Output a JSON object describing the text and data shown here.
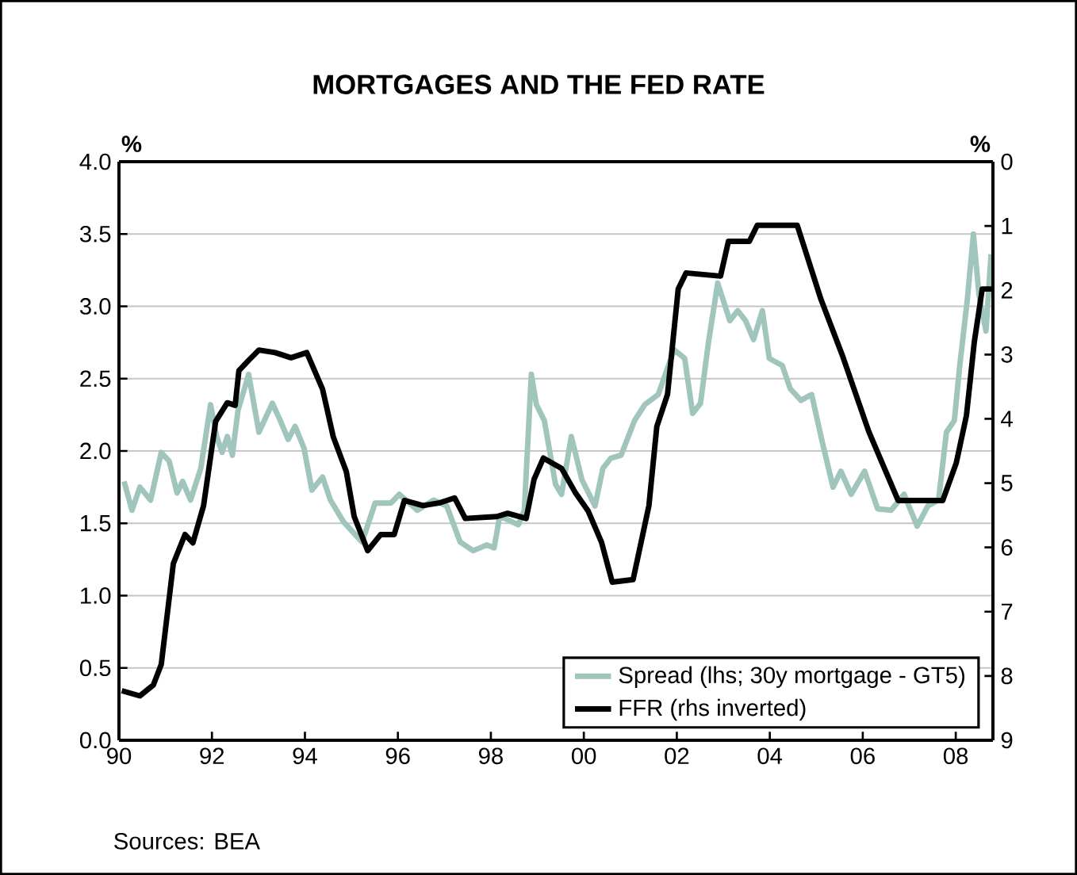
{
  "chart_data": {
    "type": "line",
    "title": "MORTGAGES AND THE FED RATE",
    "ylabel": "%",
    "y2label": "%",
    "xlim": [
      1990,
      2008.8
    ],
    "xticks": [
      {
        "value": 1990,
        "label": "90"
      },
      {
        "value": 1992,
        "label": "92"
      },
      {
        "value": 1994,
        "label": "94"
      },
      {
        "value": 1996,
        "label": "96"
      },
      {
        "value": 1998,
        "label": "98"
      },
      {
        "value": 2000,
        "label": "00"
      },
      {
        "value": 2002,
        "label": "02"
      },
      {
        "value": 2004,
        "label": "04"
      },
      {
        "value": 2006,
        "label": "06"
      },
      {
        "value": 2008,
        "label": "08"
      }
    ],
    "ylim": [
      0,
      4
    ],
    "yticks": [
      {
        "value": 0,
        "label": "0.0"
      },
      {
        "value": 0.5,
        "label": "0.5"
      },
      {
        "value": 1,
        "label": "1.0"
      },
      {
        "value": 1.5,
        "label": "1.5"
      },
      {
        "value": 2,
        "label": "2.0"
      },
      {
        "value": 2.5,
        "label": "2.5"
      },
      {
        "value": 3,
        "label": "3.0"
      },
      {
        "value": 3.5,
        "label": "3.5"
      },
      {
        "value": 4,
        "label": "4.0"
      }
    ],
    "y2lim": [
      9,
      0
    ],
    "y2ticks": [
      0,
      1,
      2,
      3,
      4,
      5,
      6,
      7,
      8,
      9
    ],
    "grid": "y",
    "legend": "bottom right",
    "series": [
      {
        "name": "Spread (lhs; 30y mortgage - GT5)",
        "color": "#9fc5bc",
        "x": [
          1990.11,
          1990.28,
          1990.45,
          1990.68,
          1990.91,
          1991.08,
          1991.25,
          1991.37,
          1991.54,
          1991.76,
          1991.97,
          1992.1,
          1992.22,
          1992.33,
          1992.44,
          1992.56,
          1992.79,
          1993.01,
          1993.3,
          1993.47,
          1993.64,
          1993.79,
          1993.98,
          1994.15,
          1994.38,
          1994.55,
          1994.83,
          1995.23,
          1995.51,
          1995.85,
          1996.03,
          1996.42,
          1996.77,
          1997.05,
          1997.34,
          1997.62,
          1997.91,
          1998.07,
          1998.19,
          1998.59,
          1998.72,
          1998.87,
          1998.98,
          1999.15,
          1999.39,
          1999.52,
          1999.73,
          1999.96,
          2000.24,
          2000.41,
          2000.58,
          2000.8,
          2001.09,
          2001.31,
          2001.6,
          2001.94,
          2002.17,
          2002.34,
          2002.51,
          2002.68,
          2002.88,
          2003.14,
          2003.31,
          2003.48,
          2003.65,
          2003.84,
          2003.99,
          2004.27,
          2004.44,
          2004.67,
          2004.9,
          2005.13,
          2005.36,
          2005.53,
          2005.75,
          2006.04,
          2006.32,
          2006.61,
          2006.89,
          2007.17,
          2007.4,
          2007.63,
          2007.8,
          2007.97,
          2008.08,
          2008.25,
          2008.38,
          2008.5,
          2008.65,
          2008.76
        ],
        "values": [
          1.79,
          1.59,
          1.75,
          1.66,
          1.99,
          1.93,
          1.71,
          1.79,
          1.66,
          1.88,
          2.32,
          2.1,
          1.99,
          2.1,
          1.97,
          2.28,
          2.53,
          2.13,
          2.33,
          2.21,
          2.08,
          2.17,
          2.02,
          1.73,
          1.82,
          1.66,
          1.51,
          1.37,
          1.64,
          1.64,
          1.7,
          1.59,
          1.66,
          1.62,
          1.37,
          1.31,
          1.35,
          1.33,
          1.55,
          1.49,
          1.59,
          2.53,
          2.32,
          2.21,
          1.77,
          1.7,
          2.1,
          1.8,
          1.62,
          1.88,
          1.95,
          1.97,
          2.21,
          2.32,
          2.39,
          2.7,
          2.64,
          2.26,
          2.33,
          2.75,
          3.16,
          2.9,
          2.97,
          2.9,
          2.77,
          2.97,
          2.64,
          2.59,
          2.43,
          2.35,
          2.39,
          2.06,
          1.75,
          1.86,
          1.7,
          1.86,
          1.6,
          1.59,
          1.7,
          1.48,
          1.62,
          1.66,
          2.13,
          2.21,
          2.57,
          3.05,
          3.5,
          3.08,
          2.83,
          3.36
        ]
      },
      {
        "name": "FFR (rhs inverted)",
        "color": "#000000",
        "axis": "y2",
        "x": [
          1990.06,
          1990.45,
          1990.74,
          1990.91,
          1991.17,
          1991.42,
          1991.59,
          1991.82,
          1992.08,
          1992.33,
          1992.5,
          1992.58,
          1992.79,
          1993.01,
          1993.36,
          1993.7,
          1994.04,
          1994.38,
          1994.61,
          1994.89,
          1995.06,
          1995.35,
          1995.63,
          1995.92,
          1996.14,
          1996.54,
          1996.88,
          1997.22,
          1997.45,
          1998.13,
          1998.36,
          1998.76,
          1998.93,
          1999.13,
          1999.52,
          1999.81,
          2000.09,
          2000.38,
          2000.61,
          2001.06,
          2001.4,
          2001.57,
          2001.8,
          2002.03,
          2002.2,
          2002.94,
          2003.11,
          2003.56,
          2003.73,
          2004.59,
          2005.1,
          2005.56,
          2006.13,
          2006.76,
          2007.72,
          2008.01,
          2008.23,
          2008.4,
          2008.57,
          2008.77
        ],
        "values": [
          8.23,
          8.31,
          8.14,
          7.82,
          6.25,
          5.8,
          5.93,
          5.35,
          4.04,
          3.75,
          3.79,
          3.25,
          3.09,
          2.93,
          2.97,
          3.05,
          2.97,
          3.54,
          4.28,
          4.82,
          5.52,
          6.05,
          5.8,
          5.8,
          5.27,
          5.35,
          5.31,
          5.23,
          5.55,
          5.52,
          5.47,
          5.55,
          4.94,
          4.61,
          4.77,
          5.14,
          5.43,
          5.92,
          6.54,
          6.5,
          5.35,
          4.12,
          3.62,
          1.98,
          1.73,
          1.78,
          1.24,
          1.24,
          0.99,
          0.99,
          2.14,
          3.01,
          4.2,
          5.27,
          5.27,
          4.69,
          3.95,
          2.8,
          1.98,
          1.98
        ]
      }
    ],
    "annotations": [
      "Sources: BEA"
    ]
  }
}
